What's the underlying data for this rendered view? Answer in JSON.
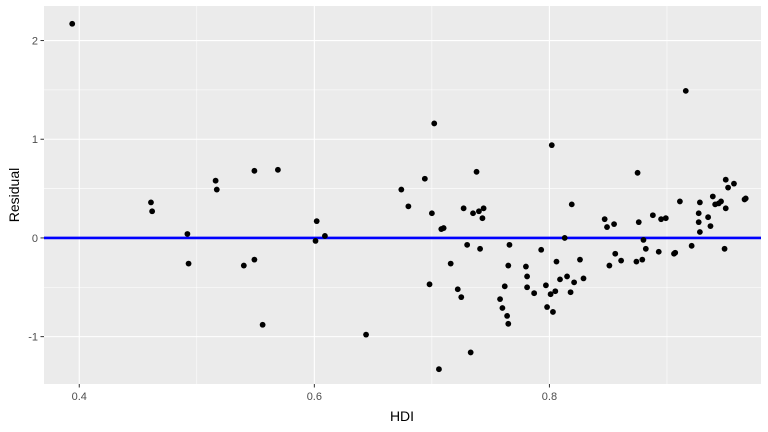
{
  "chart_data": {
    "type": "scatter",
    "title": "",
    "xlabel": "HDI",
    "ylabel": "Residual",
    "xlim": [
      0.37,
      0.98
    ],
    "ylim": [
      -1.48,
      2.35
    ],
    "x_ticks": [
      0.4,
      0.6,
      0.8
    ],
    "x_tick_labels": [
      "0.4",
      "0.6",
      "0.8"
    ],
    "x_minor_ticks": [
      0.5,
      0.7,
      0.9
    ],
    "y_ticks": [
      -1,
      0,
      1,
      2
    ],
    "y_tick_labels": [
      "-1",
      "0",
      "1",
      "2"
    ],
    "y_minor_ticks": [
      -0.5,
      0.5,
      1.5
    ],
    "grid": true,
    "legend": "none",
    "colors": {
      "panel_background": "#ebebeb",
      "grid_line": "#ffffff",
      "point": "#000000",
      "reference_line": "#0000ff"
    },
    "reference_line": {
      "y": 0
    },
    "points": [
      {
        "x": 0.394,
        "y": 2.17
      },
      {
        "x": 0.461,
        "y": 0.36
      },
      {
        "x": 0.462,
        "y": 0.27
      },
      {
        "x": 0.492,
        "y": 0.04
      },
      {
        "x": 0.493,
        "y": -0.26
      },
      {
        "x": 0.516,
        "y": 0.58
      },
      {
        "x": 0.517,
        "y": 0.49
      },
      {
        "x": 0.54,
        "y": -0.28
      },
      {
        "x": 0.549,
        "y": 0.68
      },
      {
        "x": 0.549,
        "y": -0.22
      },
      {
        "x": 0.556,
        "y": -0.88
      },
      {
        "x": 0.569,
        "y": 0.69
      },
      {
        "x": 0.601,
        "y": -0.03
      },
      {
        "x": 0.602,
        "y": 0.17
      },
      {
        "x": 0.609,
        "y": 0.02
      },
      {
        "x": 0.644,
        "y": -0.98
      },
      {
        "x": 0.674,
        "y": 0.49
      },
      {
        "x": 0.68,
        "y": 0.32
      },
      {
        "x": 0.694,
        "y": 0.6
      },
      {
        "x": 0.698,
        "y": -0.47
      },
      {
        "x": 0.7,
        "y": 0.25
      },
      {
        "x": 0.702,
        "y": 1.16
      },
      {
        "x": 0.706,
        "y": -1.33
      },
      {
        "x": 0.708,
        "y": 0.09
      },
      {
        "x": 0.71,
        "y": 0.1
      },
      {
        "x": 0.716,
        "y": -0.26
      },
      {
        "x": 0.722,
        "y": -0.52
      },
      {
        "x": 0.725,
        "y": -0.6
      },
      {
        "x": 0.727,
        "y": 0.3
      },
      {
        "x": 0.73,
        "y": -0.07
      },
      {
        "x": 0.733,
        "y": -1.16
      },
      {
        "x": 0.735,
        "y": 0.25
      },
      {
        "x": 0.738,
        "y": 0.67
      },
      {
        "x": 0.74,
        "y": 0.27
      },
      {
        "x": 0.741,
        "y": -0.11
      },
      {
        "x": 0.743,
        "y": 0.2
      },
      {
        "x": 0.744,
        "y": 0.3
      },
      {
        "x": 0.758,
        "y": -0.62
      },
      {
        "x": 0.76,
        "y": -0.71
      },
      {
        "x": 0.762,
        "y": -0.49
      },
      {
        "x": 0.764,
        "y": -0.79
      },
      {
        "x": 0.765,
        "y": -0.87
      },
      {
        "x": 0.765,
        "y": -0.28
      },
      {
        "x": 0.766,
        "y": -0.07
      },
      {
        "x": 0.78,
        "y": -0.29
      },
      {
        "x": 0.781,
        "y": -0.39
      },
      {
        "x": 0.781,
        "y": -0.5
      },
      {
        "x": 0.787,
        "y": -0.56
      },
      {
        "x": 0.793,
        "y": -0.12
      },
      {
        "x": 0.797,
        "y": -0.48
      },
      {
        "x": 0.798,
        "y": -0.7
      },
      {
        "x": 0.801,
        "y": -0.57
      },
      {
        "x": 0.802,
        "y": 0.94
      },
      {
        "x": 0.803,
        "y": -0.75
      },
      {
        "x": 0.805,
        "y": -0.54
      },
      {
        "x": 0.806,
        "y": -0.24
      },
      {
        "x": 0.809,
        "y": -0.42
      },
      {
        "x": 0.813,
        "y": 0.0
      },
      {
        "x": 0.815,
        "y": -0.39
      },
      {
        "x": 0.818,
        "y": -0.55
      },
      {
        "x": 0.819,
        "y": 0.34
      },
      {
        "x": 0.821,
        "y": -0.45
      },
      {
        "x": 0.826,
        "y": -0.22
      },
      {
        "x": 0.829,
        "y": -0.41
      },
      {
        "x": 0.847,
        "y": 0.19
      },
      {
        "x": 0.849,
        "y": 0.11
      },
      {
        "x": 0.851,
        "y": -0.28
      },
      {
        "x": 0.855,
        "y": 0.14
      },
      {
        "x": 0.856,
        "y": -0.16
      },
      {
        "x": 0.861,
        "y": -0.23
      },
      {
        "x": 0.874,
        "y": -0.24
      },
      {
        "x": 0.875,
        "y": 0.66
      },
      {
        "x": 0.876,
        "y": 0.16
      },
      {
        "x": 0.879,
        "y": -0.22
      },
      {
        "x": 0.88,
        "y": -0.02
      },
      {
        "x": 0.882,
        "y": -0.11
      },
      {
        "x": 0.888,
        "y": 0.23
      },
      {
        "x": 0.893,
        "y": -0.14
      },
      {
        "x": 0.895,
        "y": 0.19
      },
      {
        "x": 0.899,
        "y": 0.2
      },
      {
        "x": 0.906,
        "y": -0.16
      },
      {
        "x": 0.907,
        "y": -0.15
      },
      {
        "x": 0.911,
        "y": 0.37
      },
      {
        "x": 0.916,
        "y": 1.49
      },
      {
        "x": 0.921,
        "y": -0.08
      },
      {
        "x": 0.927,
        "y": 0.25
      },
      {
        "x": 0.927,
        "y": 0.16
      },
      {
        "x": 0.928,
        "y": 0.06
      },
      {
        "x": 0.928,
        "y": 0.36
      },
      {
        "x": 0.935,
        "y": 0.21
      },
      {
        "x": 0.937,
        "y": 0.12
      },
      {
        "x": 0.939,
        "y": 0.42
      },
      {
        "x": 0.941,
        "y": 0.34
      },
      {
        "x": 0.944,
        "y": 0.35
      },
      {
        "x": 0.946,
        "y": 0.37
      },
      {
        "x": 0.949,
        "y": -0.11
      },
      {
        "x": 0.95,
        "y": 0.59
      },
      {
        "x": 0.95,
        "y": 0.3
      },
      {
        "x": 0.952,
        "y": 0.51
      },
      {
        "x": 0.957,
        "y": 0.55
      },
      {
        "x": 0.966,
        "y": 0.39
      },
      {
        "x": 0.967,
        "y": 0.4
      }
    ]
  }
}
